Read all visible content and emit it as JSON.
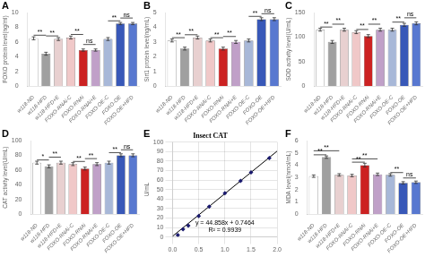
{
  "chart_data": [
    {
      "type": "bar",
      "panel_label": "A",
      "categories": [
        "w118-ND",
        "w118-HFD",
        "w118-HFD+E",
        "FOXO-RNAi-C",
        "FOXO-RNAi",
        "FOXO-RNAi+E",
        "FOXO-OE-C",
        "FOXO-OE",
        "FOXO-OE+HFD"
      ],
      "values": [
        6.5,
        4.4,
        6.4,
        6.6,
        4.9,
        4.9,
        6.4,
        8.5,
        8.5
      ],
      "errors": [
        0.2,
        0.2,
        0.2,
        0.2,
        0.15,
        0.15,
        0.2,
        0.15,
        0.15
      ],
      "colors": [
        "#ffffff",
        "#a0a0a0",
        "#e8d0d0",
        "#f0c8c8",
        "#cc2222",
        "#c0a0c8",
        "#a8b8d8",
        "#3858b8",
        "#5878d0"
      ],
      "ylabel": "FOXO protein level(ng/ml)",
      "ylim": [
        0,
        10
      ],
      "yticks": [
        0,
        2,
        4,
        6,
        8,
        10
      ],
      "grid": false,
      "annotations": [
        {
          "from": "w118-ND",
          "to": "w118-HFD",
          "y": 6.92,
          "text": "**"
        },
        {
          "from": "w118-HFD",
          "to": "w118-HFD+E",
          "y": 6.82,
          "text": "**"
        },
        {
          "from": "FOXO-RNAi-C",
          "to": "FOXO-RNAi",
          "y": 7.02,
          "text": "**"
        },
        {
          "from": "FOXO-RNAi",
          "to": "FOXO-RNAi+E",
          "y": 5.655,
          "text": "ns"
        },
        {
          "from": "FOXO-OE-C",
          "to": "FOXO-OE",
          "y": 8.87,
          "text": "**"
        },
        {
          "from": "FOXO-OE",
          "to": "FOXO-OE+HFD",
          "y": 9.255,
          "text": "ns"
        }
      ]
    },
    {
      "type": "bar",
      "panel_label": "B",
      "categories": [
        "w118-ND",
        "w118-HFD",
        "w118-HFD+E",
        "FOXO-RNAi-C",
        "FOXO-RNAi",
        "FOXO-RNAi+E",
        "FOXO-OE-C",
        "FOXO-OE",
        "FOXO-OE+HFD"
      ],
      "values": [
        3.1,
        2.55,
        3.3,
        3.1,
        2.55,
        3.0,
        3.1,
        4.55,
        4.55
      ],
      "errors": [
        0.1,
        0.1,
        0.1,
        0.1,
        0.1,
        0.1,
        0.1,
        0.1,
        0.1
      ],
      "colors": [
        "#ffffff",
        "#a0a0a0",
        "#e8d0d0",
        "#f0c8c8",
        "#cc2222",
        "#c0a0c8",
        "#a8b8d8",
        "#3858b8",
        "#5878d0"
      ],
      "ylabel": "Sirt1 protein level(ng/mL)",
      "ylim": [
        0,
        5
      ],
      "yticks": [
        0,
        1,
        2,
        3,
        4,
        5
      ],
      "grid": false,
      "annotations": [
        {
          "from": "w118-ND",
          "to": "w118-HFD",
          "y": 3.29,
          "text": "**"
        },
        {
          "from": "w118-HFD",
          "to": "w118-HFD+E",
          "y": 3.49,
          "text": "**"
        },
        {
          "from": "FOXO-RNAi-C",
          "to": "FOXO-RNAi",
          "y": 3.29,
          "text": "**"
        },
        {
          "from": "FOXO-RNAi",
          "to": "FOXO-RNAi+E",
          "y": 3.37,
          "text": "**"
        },
        {
          "from": "FOXO-OE-C",
          "to": "FOXO-OE",
          "y": 4.74,
          "text": "**"
        },
        {
          "from": "FOXO-OE",
          "to": "FOXO-OE+HFD",
          "y": 4.92,
          "text": "ns"
        }
      ]
    },
    {
      "type": "bar",
      "panel_label": "C",
      "categories": [
        "w118-ND",
        "w118-HFD",
        "w118-HFD+E",
        "FOXO-RNAi-C",
        "FOXO-RNAi",
        "FOXO-RNAi+E",
        "FOXO-OE-C",
        "FOXO-OE",
        "FOXO-OE+HFD"
      ],
      "values": [
        115,
        90,
        115,
        110,
        102,
        115,
        115,
        125,
        128
      ],
      "errors": [
        3,
        3,
        3,
        3,
        3,
        3,
        3,
        3,
        3
      ],
      "colors": [
        "#ffffff",
        "#a0a0a0",
        "#e8d0d0",
        "#f0c8c8",
        "#cc2222",
        "#c0a0c8",
        "#a8b8d8",
        "#3858b8",
        "#5878d0"
      ],
      "ylabel": "SOD activity level(U/mL)",
      "ylim": [
        0,
        150
      ],
      "yticks": [
        0,
        50,
        100,
        150
      ],
      "grid": false,
      "annotations": [
        {
          "from": "w118-ND",
          "to": "w118-HFD",
          "y": 120.475,
          "text": "**"
        },
        {
          "from": "w118-HFD",
          "to": "w118-HFD+E",
          "y": 126.25,
          "text": "**"
        },
        {
          "from": "FOXO-RNAi-C",
          "to": "FOXO-RNAi",
          "y": 115.475,
          "text": "**"
        },
        {
          "from": "FOXO-RNAi",
          "to": "FOXO-RNAi+E",
          "y": 126.25,
          "text": "**"
        },
        {
          "from": "FOXO-OE-C",
          "to": "FOXO-OE",
          "y": 130.475,
          "text": "**"
        },
        {
          "from": "FOXO-OE",
          "to": "FOXO-OE+HFD",
          "y": 139.25,
          "text": "ns"
        }
      ]
    },
    {
      "type": "bar",
      "panel_label": "D",
      "categories": [
        "w118-ND",
        "w118-HFD",
        "w118-HFD+E",
        "FOXO-RNAi-C",
        "FOXO-RNAi",
        "FOXO-RNAi+E",
        "FOXO-OE-C",
        "FOXO-OE",
        "FOXO-OE+HFD"
      ],
      "values": [
        70,
        65,
        70,
        68,
        62,
        68,
        70,
        80,
        80
      ],
      "errors": [
        2,
        2,
        2,
        2,
        2,
        2,
        2,
        2,
        2
      ],
      "colors": [
        "#ffffff",
        "#a0a0a0",
        "#e8d0d0",
        "#f0c8c8",
        "#cc2222",
        "#c0a0c8",
        "#a8b8d8",
        "#3858b8",
        "#5878d0"
      ],
      "ylabel": "CAT activity level(U/mL)",
      "ylim": [
        0,
        100
      ],
      "yticks": [
        0,
        20,
        40,
        60,
        80,
        100
      ],
      "grid": false,
      "annotations": [
        {
          "from": "w118-ND",
          "to": "w118-HFD",
          "y": 73.65,
          "text": "*"
        },
        {
          "from": "w118-HFD",
          "to": "w118-HFD+E",
          "y": 77.5,
          "text": "**"
        },
        {
          "from": "FOXO-RNAi-C",
          "to": "FOXO-RNAi",
          "y": 71.65,
          "text": "**"
        },
        {
          "from": "FOXO-RNAi",
          "to": "FOXO-RNAi+E",
          "y": 75.5,
          "text": "**"
        },
        {
          "from": "FOXO-OE-C",
          "to": "FOXO-OE",
          "y": 83.65,
          "text": "**"
        },
        {
          "from": "FOXO-OE",
          "to": "FOXO-OE+HFD",
          "y": 87.5,
          "text": "ns"
        }
      ]
    },
    {
      "type": "scatter",
      "panel_label": "E",
      "title": "Insect CAT",
      "ylabel": "U/mL",
      "xlim": [
        0,
        2
      ],
      "xticks": [
        {
          "value": 0,
          "label": "0.0"
        },
        0.5,
        {
          "value": 1,
          "label": "1.0"
        },
        1.5,
        {
          "value": 2,
          "label": "2.0"
        }
      ],
      "ylim": [
        0,
        100
      ],
      "yticks": [
        0,
        10,
        20,
        30,
        40,
        50,
        60,
        70,
        80,
        90,
        100
      ],
      "grid": true,
      "series": [
        {
          "type": "scatter",
          "x": [
            0.1,
            0.2,
            0.3,
            0.5,
            0.7,
            1.0,
            1.3,
            1.5,
            1.85
          ],
          "values": [
            2,
            8,
            12,
            22,
            32,
            46,
            59,
            68,
            83
          ],
          "color": "#1a1a6e",
          "marker": "diamond"
        },
        {
          "type": "line",
          "x": [
            0,
            2
          ],
          "values": [
            0.7464,
            90.4624
          ],
          "color": "#000000",
          "line_style": "solid"
        }
      ],
      "annotations": [
        {
          "text": "y = 44.858x + 0.7464"
        },
        {
          "text": "R² = 0.9939"
        }
      ]
    },
    {
      "type": "bar",
      "panel_label": "F",
      "categories": [
        "w118-ND",
        "w118-HFD",
        "w118-HFD+E",
        "FOXO-RNAi-C",
        "FOXO-RNAi",
        "FOXO-RNAi+E",
        "FOXO-OE-C",
        "FOXO-OE",
        "FOXO-OE+HFD"
      ],
      "values": [
        3.1,
        4.65,
        3.2,
        3.15,
        4.0,
        3.25,
        3.2,
        2.55,
        2.6
      ],
      "errors": [
        0.1,
        0.1,
        0.1,
        0.1,
        0.15,
        0.1,
        0.1,
        0.1,
        0.1
      ],
      "colors": [
        "#ffffff",
        "#a0a0a0",
        "#e8d0d0",
        "#f0c8c8",
        "#cc2222",
        "#c0a0c8",
        "#a8b8d8",
        "#3858b8",
        "#5878d0"
      ],
      "ylabel": "MDA level(nmol/mL)",
      "ylim": [
        0,
        6
      ],
      "yticks": [
        0,
        1,
        2,
        3,
        4,
        5,
        6
      ],
      "grid": false,
      "annotations": [
        {
          "from": "w118-ND",
          "to": "w118-HFD",
          "y": 4.84,
          "text": "**"
        },
        {
          "from": "w118-ND",
          "to": "w118-HFD+E",
          "y": 5.17,
          "text": "**"
        },
        {
          "from": "FOXO-RNAi-C",
          "to": "FOXO-RNAi",
          "y": 4.24,
          "text": "**"
        },
        {
          "from": "FOXO-RNAi-C",
          "to": "FOXO-RNAi+E",
          "y": 4.51,
          "text": "**"
        },
        {
          "from": "FOXO-OE-C",
          "to": "FOXO-OE",
          "y": 3.39,
          "text": "**"
        },
        {
          "from": "FOXO-OE",
          "to": "FOXO-OE+HFD",
          "y": 2.95,
          "text": "ns"
        }
      ]
    }
  ]
}
